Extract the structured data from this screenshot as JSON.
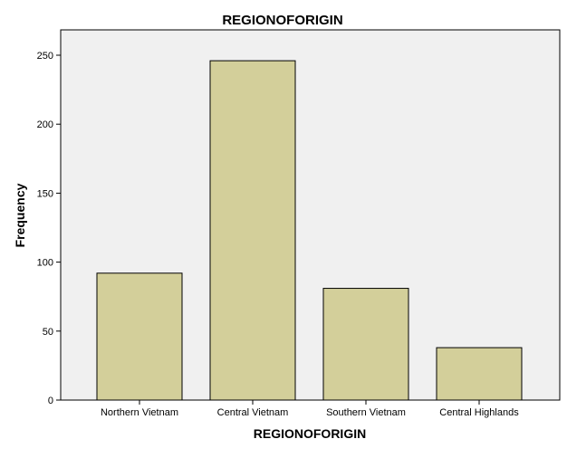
{
  "chart_data": {
    "type": "bar",
    "title": "REGIONOFORIGIN",
    "xlabel": "REGIONOFORIGIN",
    "ylabel": "Frequency",
    "categories": [
      "Northern Vietnam",
      "Central Vietnam",
      "Southern Vietnam",
      "Central Highlands"
    ],
    "values": [
      92,
      246,
      81,
      38
    ],
    "ylim": [
      0,
      250
    ],
    "yticks": [
      0,
      50,
      100,
      150,
      200,
      250
    ],
    "grid": false,
    "legend": "none",
    "colors": {
      "bar_fill": "#d3cf9a",
      "bar_stroke": "#000000",
      "plot_background": "#f0f0f0",
      "plot_border": "#000000"
    }
  }
}
